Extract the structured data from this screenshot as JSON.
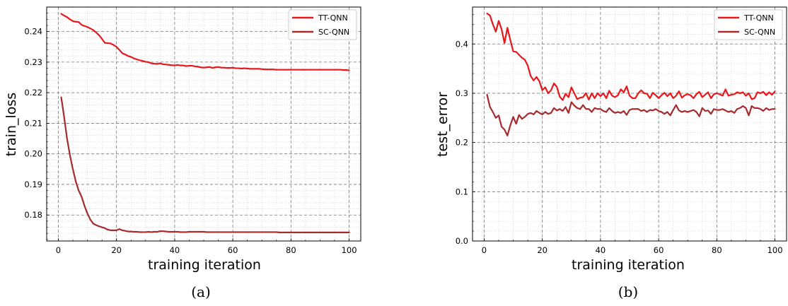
{
  "chart_data": [
    {
      "type": "line",
      "caption": "(a)",
      "xlabel": "training iteration",
      "ylabel": "train_loss",
      "xlim": [
        -4,
        104
      ],
      "ylim": [
        0.1715,
        0.248
      ],
      "xticks": [
        0,
        20,
        40,
        60,
        80,
        100
      ],
      "yticks": [
        0.18,
        0.19,
        0.2,
        0.21,
        0.22,
        0.23,
        0.24
      ],
      "xtick_labels": [
        "0",
        "20",
        "40",
        "60",
        "80",
        "100"
      ],
      "ytick_labels": [
        "0.18",
        "0.19",
        "0.20",
        "0.21",
        "0.22",
        "0.23",
        "0.24"
      ],
      "grid": true,
      "legend": "top-right",
      "x_start": 1,
      "series": [
        {
          "name": "TT-QNN",
          "color": "#e8171b",
          "values": [
            0.2458,
            0.2452,
            0.2447,
            0.244,
            0.2434,
            0.2432,
            0.2431,
            0.2422,
            0.2418,
            0.2415,
            0.241,
            0.2405,
            0.2397,
            0.2388,
            0.2376,
            0.2363,
            0.2362,
            0.2361,
            0.2356,
            0.235,
            0.234,
            0.2329,
            0.2325,
            0.232,
            0.2317,
            0.2312,
            0.2309,
            0.2306,
            0.2304,
            0.2301,
            0.23,
            0.2296,
            0.2295,
            0.2294,
            0.2296,
            0.2293,
            0.2292,
            0.2291,
            0.229,
            0.2289,
            0.2291,
            0.2289,
            0.2289,
            0.2287,
            0.2288,
            0.2288,
            0.2286,
            0.2285,
            0.2283,
            0.2282,
            0.2283,
            0.2284,
            0.2281,
            0.2283,
            0.2284,
            0.2282,
            0.2282,
            0.2281,
            0.2281,
            0.2282,
            0.228,
            0.228,
            0.2279,
            0.228,
            0.2279,
            0.2278,
            0.2278,
            0.2278,
            0.2278,
            0.2277,
            0.2276,
            0.2276,
            0.2276,
            0.2276,
            0.2275,
            0.2275,
            0.2275,
            0.2275,
            0.2275,
            0.2275,
            0.2275,
            0.2275,
            0.2275,
            0.2275,
            0.2275,
            0.2275,
            0.2275,
            0.2275,
            0.2275,
            0.2275,
            0.2275,
            0.2275,
            0.2275,
            0.2275,
            0.2275,
            0.2275,
            0.2275,
            0.2274,
            0.2274,
            0.2273
          ]
        },
        {
          "name": "SC-QNN",
          "color": "#a62b2c",
          "values": [
            0.2185,
            0.212,
            0.205,
            0.1995,
            0.195,
            0.191,
            0.188,
            0.186,
            0.183,
            0.1805,
            0.1785,
            0.1772,
            0.1767,
            0.1763,
            0.176,
            0.1757,
            0.1752,
            0.175,
            0.175,
            0.175,
            0.1754,
            0.175,
            0.1748,
            0.1746,
            0.1746,
            0.1745,
            0.1745,
            0.1744,
            0.1744,
            0.1744,
            0.1745,
            0.1744,
            0.1745,
            0.1745,
            0.1747,
            0.1747,
            0.1746,
            0.1745,
            0.1745,
            0.1745,
            0.1745,
            0.1744,
            0.1744,
            0.1744,
            0.1745,
            0.1745,
            0.1745,
            0.1745,
            0.1745,
            0.1745,
            0.1744,
            0.1744,
            0.1744,
            0.1744,
            0.1744,
            0.1744,
            0.1744,
            0.1744,
            0.1744,
            0.1744,
            0.1744,
            0.1744,
            0.1744,
            0.1744,
            0.1744,
            0.1744,
            0.1744,
            0.1744,
            0.1744,
            0.1744,
            0.1744,
            0.1744,
            0.1744,
            0.1744,
            0.1744,
            0.1743,
            0.1743,
            0.1743,
            0.1743,
            0.1743,
            0.1743,
            0.1743,
            0.1743,
            0.1743,
            0.1743,
            0.1743,
            0.1743,
            0.1743,
            0.1743,
            0.1743,
            0.1743,
            0.1743,
            0.1743,
            0.1743,
            0.1743,
            0.1743,
            0.1743,
            0.1743,
            0.1743,
            0.1743
          ]
        }
      ]
    },
    {
      "type": "line",
      "caption": "(b)",
      "xlabel": "training iteration",
      "ylabel": "test_error",
      "xlim": [
        -4,
        104
      ],
      "ylim": [
        0.0,
        0.475
      ],
      "xticks": [
        0,
        20,
        40,
        60,
        80,
        100
      ],
      "yticks": [
        0.0,
        0.1,
        0.2,
        0.3,
        0.4
      ],
      "xtick_labels": [
        "0",
        "20",
        "40",
        "60",
        "80",
        "100"
      ],
      "ytick_labels": [
        "0.0",
        "0.1",
        "0.2",
        "0.3",
        "0.4"
      ],
      "grid": true,
      "legend": "top-right",
      "x_start": 1,
      "series": [
        {
          "name": "TT-QNN",
          "color": "#e8171b",
          "values": [
            0.462,
            0.458,
            0.44,
            0.425,
            0.447,
            0.43,
            0.402,
            0.433,
            0.408,
            0.385,
            0.384,
            0.378,
            0.372,
            0.368,
            0.356,
            0.335,
            0.326,
            0.333,
            0.324,
            0.306,
            0.312,
            0.3,
            0.306,
            0.32,
            0.313,
            0.293,
            0.286,
            0.299,
            0.292,
            0.312,
            0.3,
            0.288,
            0.291,
            0.292,
            0.3,
            0.287,
            0.3,
            0.29,
            0.3,
            0.294,
            0.3,
            0.29,
            0.305,
            0.295,
            0.292,
            0.296,
            0.308,
            0.302,
            0.314,
            0.295,
            0.29,
            0.29,
            0.3,
            0.306,
            0.3,
            0.299,
            0.29,
            0.301,
            0.296,
            0.29,
            0.296,
            0.301,
            0.294,
            0.3,
            0.29,
            0.295,
            0.304,
            0.291,
            0.296,
            0.298,
            0.296,
            0.29,
            0.298,
            0.303,
            0.292,
            0.297,
            0.302,
            0.29,
            0.298,
            0.3,
            0.298,
            0.295,
            0.308,
            0.295,
            0.297,
            0.298,
            0.302,
            0.3,
            0.302,
            0.295,
            0.3,
            0.288,
            0.29,
            0.302,
            0.3,
            0.303,
            0.296,
            0.302,
            0.297,
            0.304
          ]
        },
        {
          "name": "SC-QNN",
          "color": "#a62b2c",
          "values": [
            0.297,
            0.272,
            0.262,
            0.25,
            0.255,
            0.232,
            0.226,
            0.214,
            0.235,
            0.252,
            0.238,
            0.256,
            0.248,
            0.252,
            0.258,
            0.26,
            0.257,
            0.264,
            0.26,
            0.257,
            0.262,
            0.258,
            0.26,
            0.27,
            0.265,
            0.268,
            0.264,
            0.272,
            0.26,
            0.282,
            0.275,
            0.27,
            0.268,
            0.276,
            0.268,
            0.268,
            0.262,
            0.27,
            0.268,
            0.268,
            0.264,
            0.262,
            0.27,
            0.264,
            0.26,
            0.262,
            0.26,
            0.264,
            0.256,
            0.266,
            0.268,
            0.268,
            0.268,
            0.264,
            0.266,
            0.262,
            0.266,
            0.265,
            0.268,
            0.264,
            0.262,
            0.258,
            0.262,
            0.255,
            0.266,
            0.276,
            0.265,
            0.262,
            0.264,
            0.262,
            0.264,
            0.266,
            0.262,
            0.253,
            0.27,
            0.264,
            0.265,
            0.258,
            0.268,
            0.266,
            0.266,
            0.268,
            0.265,
            0.262,
            0.264,
            0.26,
            0.268,
            0.27,
            0.274,
            0.27,
            0.255,
            0.274,
            0.27,
            0.27,
            0.268,
            0.264,
            0.27,
            0.266,
            0.268,
            0.268
          ]
        }
      ]
    }
  ]
}
